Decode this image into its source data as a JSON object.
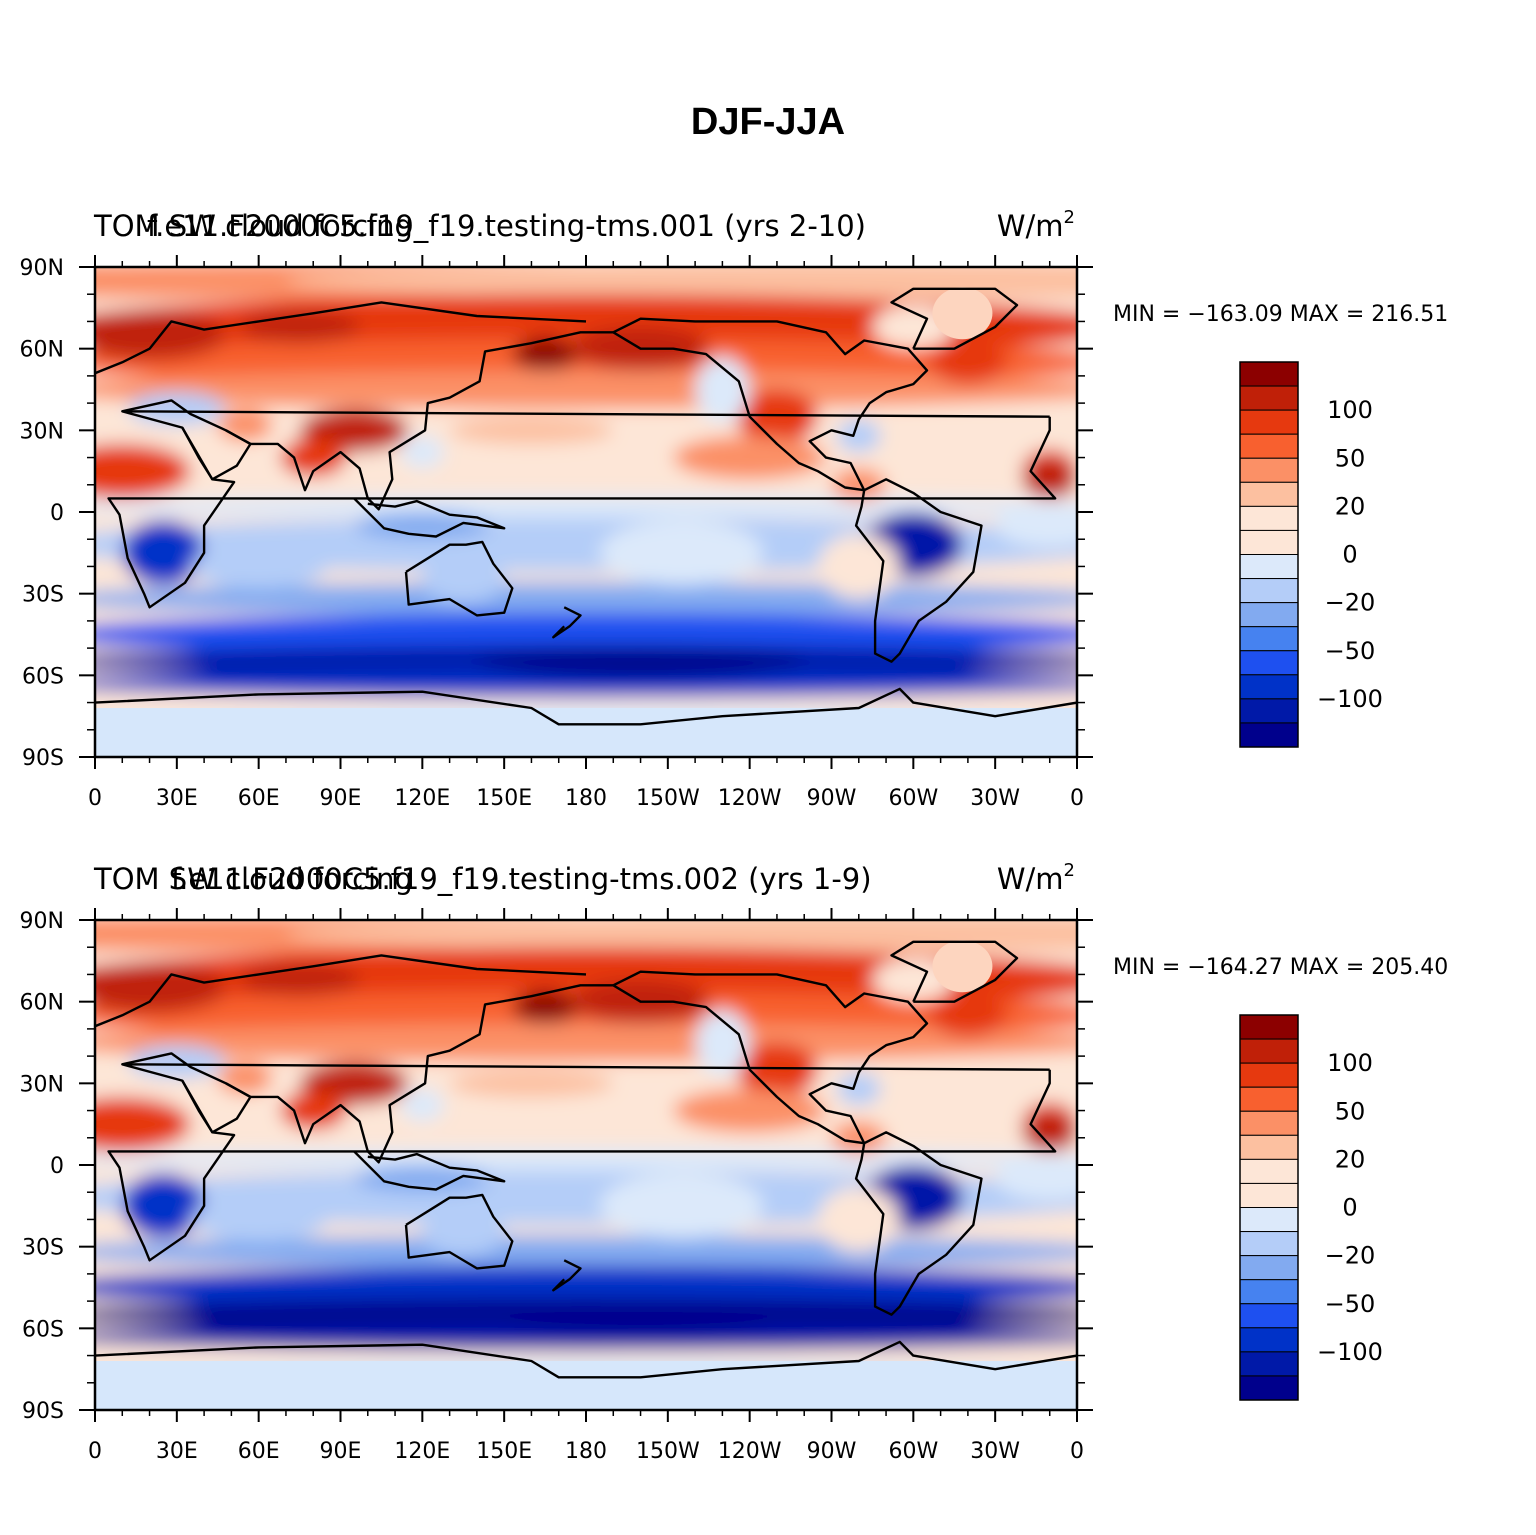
{
  "title": "DJF-JJA",
  "colors": {
    "levels": [
      "#00008c",
      "#0019a8",
      "#0032c8",
      "#1e50f0",
      "#4682f0",
      "#82aaf0",
      "#b4cdf8",
      "#dce9fa",
      "#fde6d7",
      "#fcc0a0",
      "#fb9066",
      "#f8602f",
      "#e6390f",
      "#c02008",
      "#8c0000"
    ],
    "ocean_high": "#fdd5bf",
    "antarctic": "#d6e7fb",
    "coast": "#000000"
  },
  "x_ticks": [
    "0",
    "30E",
    "60E",
    "90E",
    "120E",
    "150E",
    "180",
    "150W",
    "120W",
    "90W",
    "60W",
    "30W",
    "0"
  ],
  "y_ticks": [
    "90N",
    "60N",
    "30N",
    "0",
    "30S",
    "60S",
    "90S"
  ],
  "colorbar_labels": [
    "100",
    "50",
    "20",
    "0",
    "−20",
    "−50",
    "−100"
  ],
  "panels": [
    {
      "case": "f.e11.F2000C5.f19_f19.testing-tms.001 (yrs 2-10)",
      "variable": "TOM SW cloud forcing",
      "units": "W/m",
      "units_sup": "2",
      "stats": "MIN = −163.09  MAX = 216.51"
    },
    {
      "case": "f.e11.F2000C5.f19_f19.testing-tms.002 (yrs 1-9)",
      "variable": "TOM SW cloud forcing",
      "units": "W/m",
      "units_sup": "2",
      "stats": "MIN = −164.27  MAX = 205.40"
    }
  ]
}
